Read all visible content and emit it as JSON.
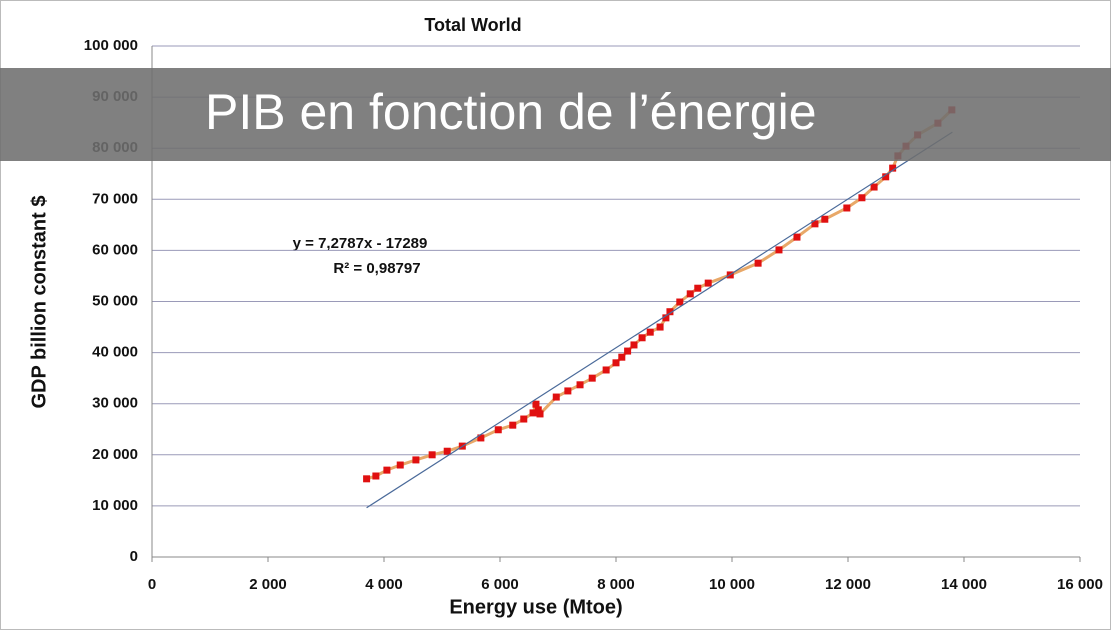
{
  "banner": {
    "text": "PIB en fonction de l’énergie"
  },
  "chart_data": {
    "type": "scatter",
    "title": "Total World",
    "xlabel": "Energy use (Mtoe)",
    "ylabel": "GDP billion constant $",
    "xlim": [
      0,
      16000
    ],
    "ylim": [
      0,
      100000
    ],
    "xticks": [
      0,
      {
        "value": 2000,
        "label": "2 000"
      },
      {
        "value": 4000,
        "label": "4 000"
      },
      {
        "value": 6000,
        "label": "6 000"
      },
      {
        "value": 8000,
        "label": "8 000"
      },
      {
        "value": 10000,
        "label": "10 000"
      },
      {
        "value": 12000,
        "label": "12 000"
      },
      {
        "value": 14000,
        "label": "14 000"
      },
      {
        "value": 16000,
        "label": "16 000"
      }
    ],
    "yticks": [
      0,
      {
        "value": 10000,
        "label": "10 000"
      },
      {
        "value": 20000,
        "label": "20 000"
      },
      {
        "value": 30000,
        "label": "30 000"
      },
      {
        "value": 40000,
        "label": "40 000"
      },
      {
        "value": 50000,
        "label": "50 000"
      },
      {
        "value": 60000,
        "label": "60 000"
      },
      {
        "value": 70000,
        "label": "70 000"
      },
      {
        "value": 80000,
        "label": "80 000"
      },
      {
        "value": 90000,
        "label": "90 000"
      },
      {
        "value": 100000,
        "label": "100 000"
      }
    ],
    "grid": true,
    "annotations": [
      "y = 7,2787x - 17289",
      "R² = 0,98797"
    ],
    "series": [
      {
        "color": "#e01010",
        "line_color": "#e8a868",
        "x": [
          3700,
          3860,
          4050,
          4280,
          4550,
          4830,
          5090,
          5350,
          5670,
          5970,
          6220,
          6410,
          6570,
          6620,
          6660,
          6690,
          6970,
          7170,
          7380,
          7590,
          7830,
          8000,
          8100,
          8200,
          8310,
          8450,
          8590,
          8760,
          8860,
          8930,
          9100,
          9280,
          9410,
          9590,
          9970,
          10450,
          10810,
          11120,
          11430,
          11600,
          11980,
          12240,
          12450,
          12650,
          12770,
          12860,
          13000,
          13200,
          13550,
          13790
        ],
        "values": [
          15300,
          15850,
          17000,
          18000,
          19000,
          20000,
          20700,
          21700,
          23300,
          24900,
          25800,
          27000,
          28200,
          29900,
          28800,
          28000,
          31300,
          32500,
          33700,
          35000,
          36600,
          38000,
          39100,
          40300,
          41500,
          42900,
          44000,
          45000,
          46800,
          48000,
          49900,
          51500,
          52600,
          53600,
          55200,
          57500,
          60100,
          62600,
          65200,
          66100,
          68300,
          70300,
          72400,
          74400,
          76100,
          78500,
          80400,
          82600,
          84900,
          87500
        ]
      },
      {
        "color": "#4a6a9a",
        "x": [
          3700,
          13800
        ],
        "values": [
          9642,
          83157
        ]
      }
    ]
  }
}
